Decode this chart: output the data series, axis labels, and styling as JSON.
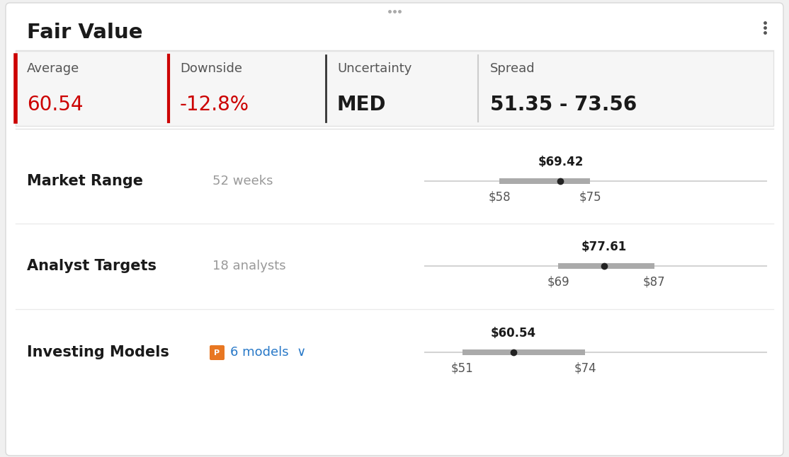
{
  "title": "Fair Value",
  "bg_color": "#f0f0f0",
  "card_bg": "#ffffff",
  "stats": [
    {
      "label": "Average",
      "value": "60.54",
      "value_color": "#cc0000",
      "bold": false
    },
    {
      "label": "Downside",
      "value": "-12.8%",
      "value_color": "#cc0000",
      "bold": false
    },
    {
      "label": "Uncertainty",
      "value": "MED",
      "value_color": "#1a1a1a",
      "bold": true
    },
    {
      "label": "Spread",
      "value": "51.35 - 73.56",
      "value_color": "#1a1a1a",
      "bold": true
    }
  ],
  "stat_label_color": "#555555",
  "stat_label_size": 13,
  "stat_value_size": 20,
  "rows": [
    {
      "label": "Market Range",
      "sublabel": "52 weeks",
      "sublabel_color": "#999999",
      "current_label": "$69.42",
      "range_min": 44,
      "range_max": 108,
      "bar_min": 58,
      "bar_max": 75,
      "dot_val": 69.42,
      "tick_left": "$58",
      "tick_right": "$75",
      "has_badge": false
    },
    {
      "label": "Analyst Targets",
      "sublabel": "18 analysts",
      "sublabel_color": "#999999",
      "current_label": "$77.61",
      "range_min": 44,
      "range_max": 108,
      "bar_min": 69,
      "bar_max": 87,
      "dot_val": 77.61,
      "tick_left": "$69",
      "tick_right": "$87",
      "has_badge": false
    },
    {
      "label": "Investing Models",
      "sublabel": "6 models",
      "sublabel_color": "#2979c8",
      "current_label": "$60.54",
      "range_min": 44,
      "range_max": 108,
      "bar_min": 51,
      "bar_max": 74,
      "dot_val": 60.54,
      "tick_left": "$51",
      "tick_right": "$74",
      "has_badge": true
    }
  ],
  "bar_color": "#aaaaaa",
  "dot_color": "#222222",
  "line_color": "#d4d4d4"
}
